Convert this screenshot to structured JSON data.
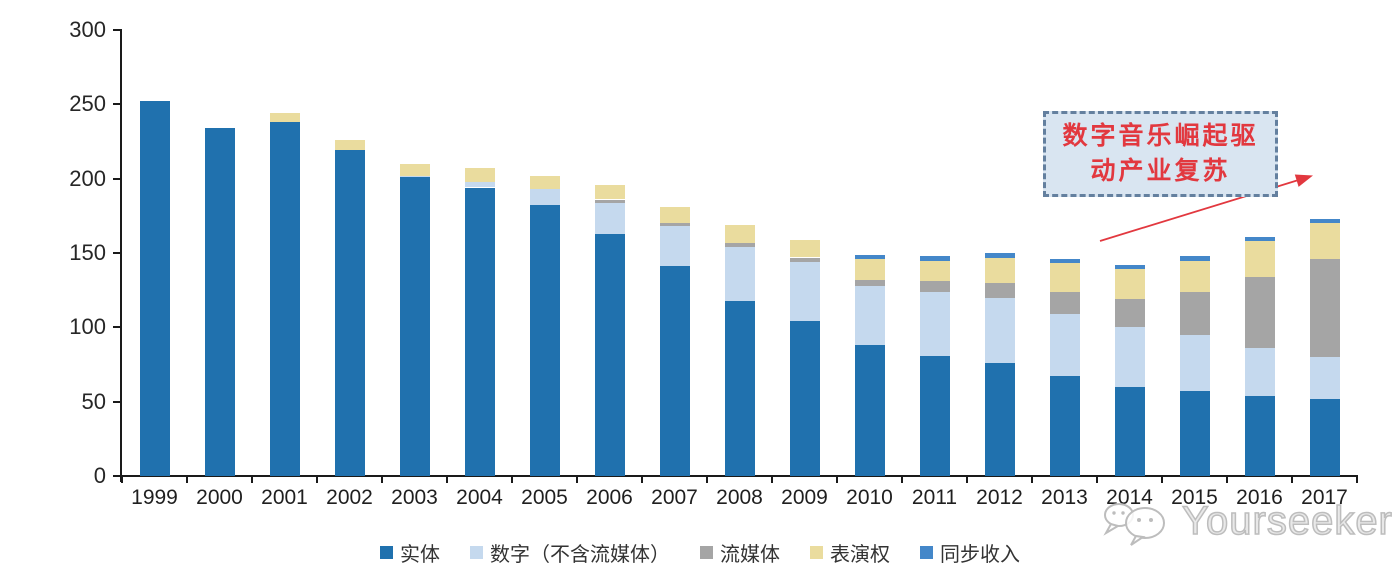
{
  "chart_data": {
    "type": "bar",
    "subtype": "stacked-vertical",
    "title": "",
    "xlabel": "",
    "ylabel": "",
    "ylim": [
      0,
      300
    ],
    "yticks": [
      0,
      50,
      100,
      150,
      200,
      250,
      300
    ],
    "grid": false,
    "legend_position": "bottom",
    "categories": [
      "1999",
      "2000",
      "2001",
      "2002",
      "2003",
      "2004",
      "2005",
      "2006",
      "2007",
      "2008",
      "2009",
      "2010",
      "2011",
      "2012",
      "2013",
      "2014",
      "2015",
      "2016",
      "2017"
    ],
    "series": [
      {
        "key": "physical",
        "name": "实体",
        "color": "#2071AE",
        "values": [
          252,
          234,
          238,
          219,
          201,
          194,
          182,
          163,
          141,
          118,
          104,
          88,
          81,
          76,
          67,
          60,
          57,
          54,
          52
        ]
      },
      {
        "key": "digital-excl-streaming",
        "name": "数字（不含流媒体）",
        "color": "#C5D9EE",
        "values": [
          0,
          0,
          0,
          0,
          1,
          4,
          11,
          21,
          27,
          36,
          40,
          40,
          43,
          44,
          42,
          40,
          38,
          32,
          28
        ]
      },
      {
        "key": "streaming",
        "name": "流媒体",
        "color": "#A5A5A5",
        "values": [
          0,
          0,
          0,
          0,
          0,
          0,
          0,
          2,
          2,
          3,
          3,
          4,
          7,
          10,
          15,
          19,
          29,
          48,
          66
        ]
      },
      {
        "key": "performance-rights",
        "name": "表演权",
        "color": "#EADC9E",
        "values": [
          0,
          0,
          6,
          7,
          8,
          9,
          9,
          10,
          11,
          12,
          12,
          14,
          14,
          17,
          19,
          20,
          21,
          24,
          24
        ]
      },
      {
        "key": "sync-revenue",
        "name": "同步收入",
        "color": "#4487C9",
        "values": [
          0,
          0,
          0,
          0,
          0,
          0,
          0,
          0,
          0,
          0,
          0,
          3,
          3,
          3,
          3,
          3,
          3,
          3,
          3
        ]
      }
    ],
    "annotation": {
      "full_text": "数字音乐崛起驱动产业复苏",
      "line1": "数字音乐崛起驱",
      "line2": "动产业复苏",
      "text_color": "#E2383F",
      "arrow_color": "#E2383F",
      "box_background": "#D9E5F1",
      "box_border_color": "#64809F"
    }
  },
  "watermark": {
    "brand": "Yourseeker"
  }
}
